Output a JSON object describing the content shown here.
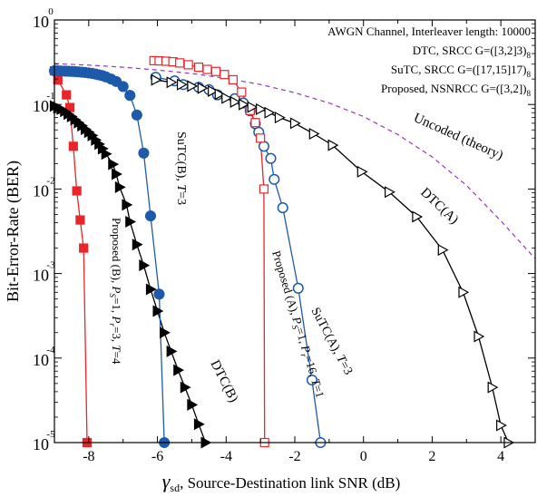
{
  "chart_data": {
    "type": "line",
    "xlabel_symbol": "γ",
    "xlabel_sub": "sd",
    "xlabel_text": ", Source-Destination link SNR (dB)",
    "ylabel": "Bit-Error-Rate (BER)",
    "xlim": [
      -9,
      5
    ],
    "ylim_log10": [
      -5,
      0
    ],
    "yscale": "log",
    "x_ticks": [
      {
        "value": -8,
        "label": "-8"
      },
      {
        "value": -6,
        "label": "-6"
      },
      {
        "value": -4,
        "label": "-4"
      },
      {
        "value": -2,
        "label": "-2"
      },
      {
        "value": 0,
        "label": "0"
      },
      {
        "value": 2,
        "label": "2"
      },
      {
        "value": 4,
        "label": "4"
      }
    ],
    "y_ticks": [
      {
        "exp": 0,
        "base": "10",
        "sup": "0"
      },
      {
        "exp": -1,
        "base": "10",
        "sup": "-1"
      },
      {
        "exp": -2,
        "base": "10",
        "sup": "-2"
      },
      {
        "exp": -3,
        "base": "10",
        "sup": "-3"
      },
      {
        "exp": -4,
        "base": "10",
        "sup": "-4"
      },
      {
        "exp": -5,
        "base": "10",
        "sup": "-5"
      }
    ],
    "legend": [
      {
        "text": "AWGN Channel, Interleaver length: 10000",
        "sub": ""
      },
      {
        "text": "DTC, SRCC G=([3,2]3)",
        "sub": "8"
      },
      {
        "text": "SuTC, SRCC G=([17,15]17)",
        "sub": "8"
      },
      {
        "text": "Proposed, NSNRCC G=([3,2])",
        "sub": "8"
      }
    ],
    "series": [
      {
        "key": "uncoded",
        "color": "#9b30c8",
        "dashed": true,
        "marker": "none",
        "x": [
          -9,
          -8,
          -7,
          -6,
          -5,
          -4,
          -3,
          -2,
          -1,
          0,
          1,
          2,
          3,
          4,
          5
        ],
        "y": [
          0.304,
          0.292,
          0.276,
          0.256,
          0.232,
          0.204,
          0.172,
          0.138,
          0.104,
          0.072,
          0.044,
          0.024,
          0.011,
          0.0042,
          0.0015
        ]
      },
      {
        "key": "proposed_b",
        "color": "#e8262a",
        "marker": "square",
        "fill": "#e8262a",
        "x": [
          -9,
          -8.9,
          -8.65,
          -8.55,
          -8.45,
          -8.35,
          -8.25,
          -8.15,
          -8.05
        ],
        "y": [
          0.25,
          0.195,
          0.13,
          0.092,
          0.032,
          0.0095,
          0.0043,
          0.002,
          1e-05
        ]
      },
      {
        "key": "dtc_b",
        "color": "#000000",
        "marker": "triangle-right",
        "fill": "#000000",
        "x": [
          -9,
          -8.9,
          -8.8,
          -8.7,
          -8.6,
          -8.5,
          -8.4,
          -8.3,
          -8.2,
          -8.1,
          -8.0,
          -7.9,
          -7.8,
          -7.7,
          -7.6,
          -7.5,
          -7.3,
          -7.2,
          -7.1,
          -6.9,
          -6.8,
          -6.6,
          -6.4,
          -6.2,
          -6.0,
          -5.8,
          -5.6,
          -5.4,
          -5.2,
          -5.0,
          -4.8,
          -4.6
        ],
        "y": [
          0.096,
          0.092,
          0.088,
          0.083,
          0.077,
          0.072,
          0.066,
          0.061,
          0.056,
          0.051,
          0.047,
          0.043,
          0.038,
          0.034,
          0.03,
          0.026,
          0.0196,
          0.015,
          0.0105,
          0.0065,
          0.0041,
          0.0022,
          0.00125,
          0.00065,
          0.00036,
          0.0002,
          0.00012,
          7.2e-05,
          4.5e-05,
          2.8e-05,
          1.65e-05,
          1e-05
        ]
      },
      {
        "key": "sutc_b",
        "color": "#1e5aaa",
        "marker": "circle",
        "fill": "#1e5aaa",
        "x": [
          -9,
          -8.9,
          -8.8,
          -8.7,
          -8.6,
          -8.5,
          -8.4,
          -8.3,
          -8.2,
          -8.1,
          -8.0,
          -7.9,
          -7.8,
          -7.7,
          -7.6,
          -7.5,
          -7.35,
          -7.2,
          -7.0,
          -6.8,
          -6.6,
          -6.4,
          -6.2,
          -5.95,
          -5.8
        ],
        "y": [
          0.25,
          0.25,
          0.249,
          0.248,
          0.247,
          0.246,
          0.245,
          0.243,
          0.241,
          0.239,
          0.236,
          0.233,
          0.229,
          0.224,
          0.219,
          0.212,
          0.2,
          0.187,
          0.163,
          0.128,
          0.075,
          0.0266,
          0.0048,
          0.00057,
          1e-05
        ]
      },
      {
        "key": "sutc_a",
        "color": "#1e5aaa",
        "marker": "circle",
        "fill": "#ffffff",
        "x": [
          -6.05,
          -5.5,
          -5.25,
          -4.8,
          -4.5,
          -4.25,
          -3.75,
          -3.5,
          -3.3,
          -3.15,
          -3.05,
          -2.9,
          -2.7,
          -2.6,
          -2.35,
          -1.9,
          -1.5,
          -1.25
        ],
        "y": [
          0.21,
          0.19,
          0.172,
          0.16,
          0.15,
          0.13,
          0.117,
          0.104,
          0.084,
          0.059,
          0.047,
          0.032,
          0.023,
          0.013,
          0.006,
          0.00067,
          5.5e-05,
          1e-05
        ]
      },
      {
        "key": "proposed_a",
        "color": "#e8262a",
        "marker": "square",
        "fill": "#ffffff",
        "x": [
          -6.1,
          -5.95,
          -5.75,
          -5.55,
          -5.35,
          -5.1,
          -4.8,
          -4.55,
          -4.3,
          -4.05,
          -3.8,
          -3.55,
          -3.3,
          -3.15,
          -3.0,
          -2.9,
          -2.88
        ],
        "y": [
          0.33,
          0.328,
          0.325,
          0.32,
          0.31,
          0.295,
          0.276,
          0.26,
          0.246,
          0.226,
          0.196,
          0.14,
          0.085,
          0.061,
          0.04,
          0.01,
          1e-05
        ]
      },
      {
        "key": "dtc_a",
        "color": "#000000",
        "marker": "triangle-right",
        "fill": "#ffffff",
        "x": [
          -6.05,
          -5.6,
          -5.3,
          -5.0,
          -4.7,
          -4.4,
          -4.2,
          -4.0,
          -3.75,
          -3.5,
          -3.25,
          -3.0,
          -2.75,
          -2.45,
          -2.0,
          -1.45,
          -0.9,
          -0.05,
          0.75,
          1.55,
          2.3,
          2.9,
          3.35,
          3.75,
          4.0,
          4.22
        ],
        "y": [
          0.195,
          0.183,
          0.172,
          0.165,
          0.156,
          0.144,
          0.132,
          0.119,
          0.107,
          0.1,
          0.093,
          0.088,
          0.08,
          0.07,
          0.06,
          0.045,
          0.033,
          0.016,
          0.0092,
          0.0047,
          0.0019,
          0.0006,
          0.00018,
          4.5e-05,
          1.6e-05,
          1e-05
        ]
      }
    ],
    "annotations": [
      {
        "key": "uncoded",
        "text": "Uncoded (theory)"
      },
      {
        "key": "dtc_a",
        "text": "DTC(A)"
      },
      {
        "key": "dtc_b",
        "text": "DTC(B)"
      },
      {
        "key": "sutc_b",
        "parts": [
          {
            "t": "SuTC(B), "
          },
          {
            "t": "T",
            "i": true
          },
          {
            "t": "=3"
          }
        ]
      },
      {
        "key": "sutc_a",
        "parts": [
          {
            "t": "SuTC(A), "
          },
          {
            "t": "T",
            "i": true
          },
          {
            "t": "=3"
          }
        ]
      },
      {
        "key": "proposed_a",
        "parts": [
          {
            "t": "Proposed (A), "
          },
          {
            "t": "P",
            "i": true
          },
          {
            "t": "S",
            "i": true,
            "sub": true
          },
          {
            "t": "=1, "
          },
          {
            "t": "P",
            "i": true
          },
          {
            "t": "r",
            "i": true,
            "sub": true
          },
          {
            "t": "=16, "
          },
          {
            "t": "T",
            "i": true
          },
          {
            "t": "=1"
          }
        ]
      },
      {
        "key": "proposed_b",
        "parts": [
          {
            "t": "Proposed (B), "
          },
          {
            "t": "P",
            "i": true
          },
          {
            "t": "S",
            "i": true,
            "sub": true
          },
          {
            "t": "=1, "
          },
          {
            "t": "P",
            "i": true
          },
          {
            "t": "r",
            "i": true,
            "sub": true
          },
          {
            "t": "=3, "
          },
          {
            "t": "T",
            "i": true
          },
          {
            "t": "=4"
          }
        ]
      }
    ]
  }
}
